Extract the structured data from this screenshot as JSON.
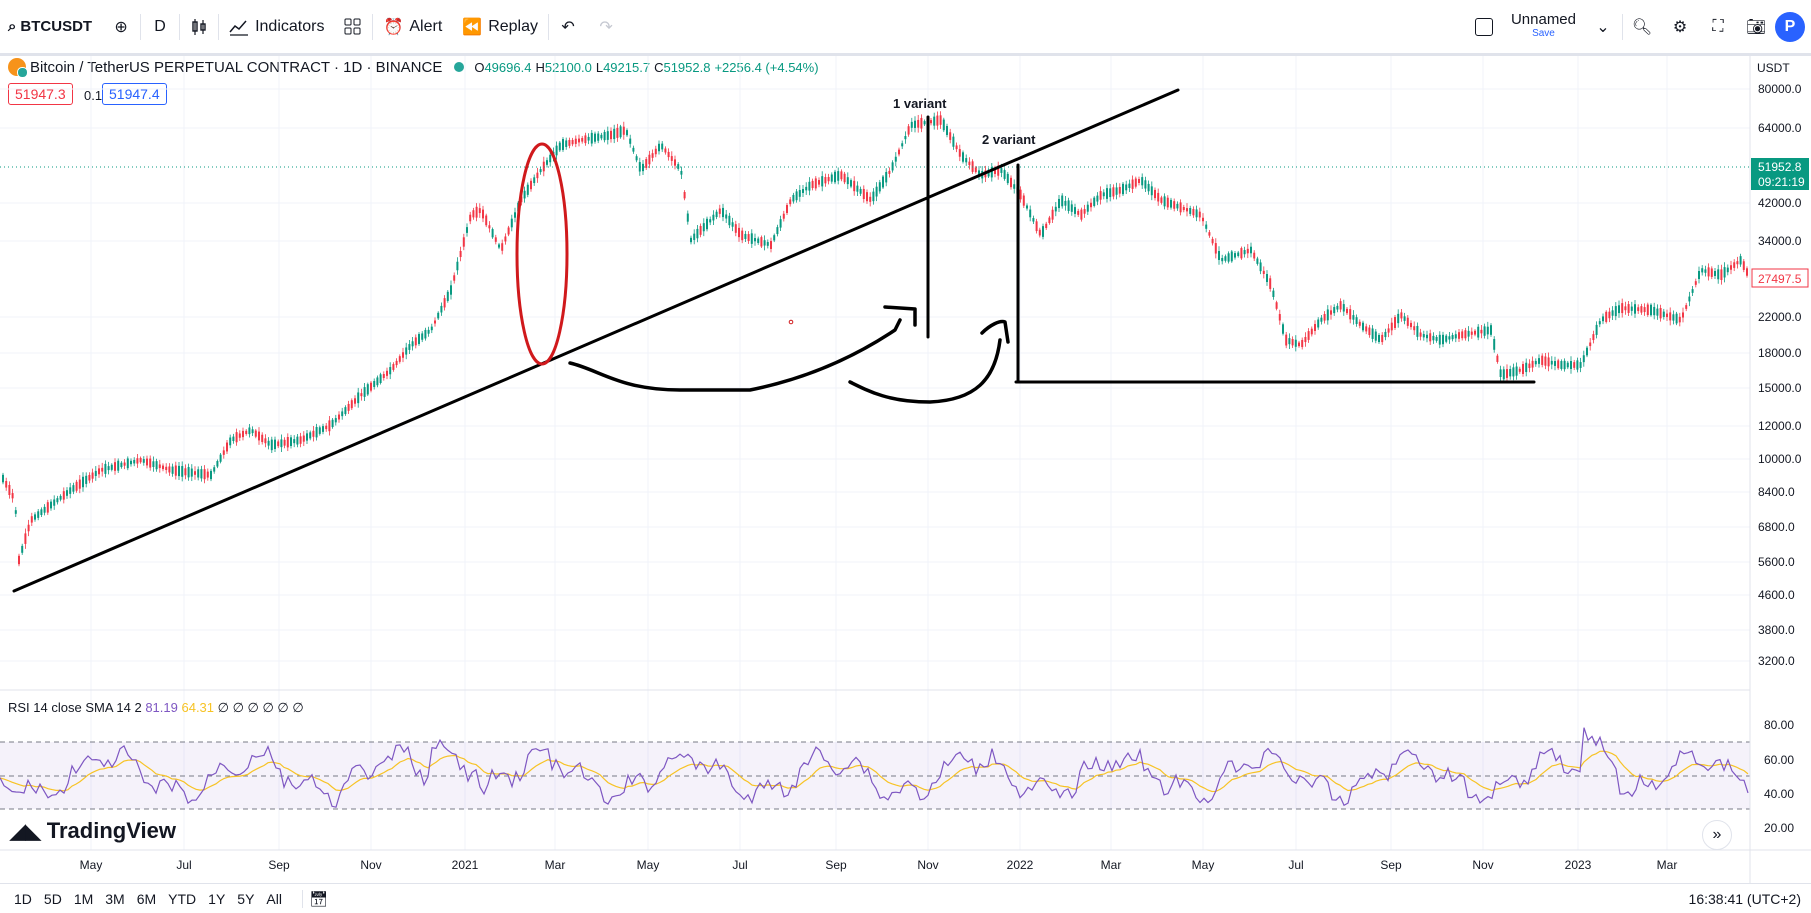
{
  "toolbar": {
    "symbol": "BTCUSDT",
    "interval": "D",
    "indicators_label": "Indicators",
    "alert_label": "Alert",
    "replay_label": "Replay",
    "layout_name": "Unnamed",
    "layout_save": "Save",
    "profile_initial": "P"
  },
  "legend": {
    "title": "Bitcoin / TetherUS PERPETUAL CONTRACT · 1D · BINANCE",
    "o_label": "O",
    "o_value": "49696.4",
    "h_label": "H",
    "h_value": "52100.0",
    "l_label": "L",
    "l_value": "49215.7",
    "c_label": "C",
    "c_value": "51952.8",
    "change": "+2256.4 (+4.54%)",
    "bid": "51947.3",
    "spread": "0.1",
    "ask": "51947.4"
  },
  "price_axis": {
    "currency": "USDT",
    "ticks": [
      "80000.0",
      "64000.0",
      "42000.0",
      "34000.0",
      "22000.0",
      "18000.0",
      "15000.0",
      "12000.0",
      "10000.0",
      "8400.0",
      "6800.0",
      "5600.0",
      "4600.0",
      "3800.0",
      "3200.0"
    ],
    "last_price": "51952.8",
    "countdown": "09:21:19",
    "marker": "27497.5"
  },
  "annotations": {
    "variant1": "1 variant",
    "variant2": "2 variant"
  },
  "rsi": {
    "label": "RSI 14 close SMA 14 2",
    "value1": "81.19",
    "value2": "64.31",
    "extras": "∅ ∅ ∅ ∅ ∅ ∅",
    "ticks": [
      "80.00",
      "60.00",
      "40.00",
      "20.00"
    ]
  },
  "time_axis": [
    "May",
    "Jul",
    "Sep",
    "Nov",
    "2021",
    "Mar",
    "May",
    "Jul",
    "Sep",
    "Nov",
    "2022",
    "Mar",
    "May",
    "Jul",
    "Sep",
    "Nov",
    "2023",
    "Mar"
  ],
  "brand": "TradingView",
  "ranges": [
    "1D",
    "5D",
    "1M",
    "3M",
    "6M",
    "YTD",
    "1Y",
    "5Y",
    "All"
  ],
  "clock": "16:38:41 (UTC+2)",
  "colors": {
    "up": "#089981",
    "down": "#f23645",
    "rsi": "#7e57c2",
    "rsi_ma": "#f7c325",
    "accent": "#2962ff"
  }
}
